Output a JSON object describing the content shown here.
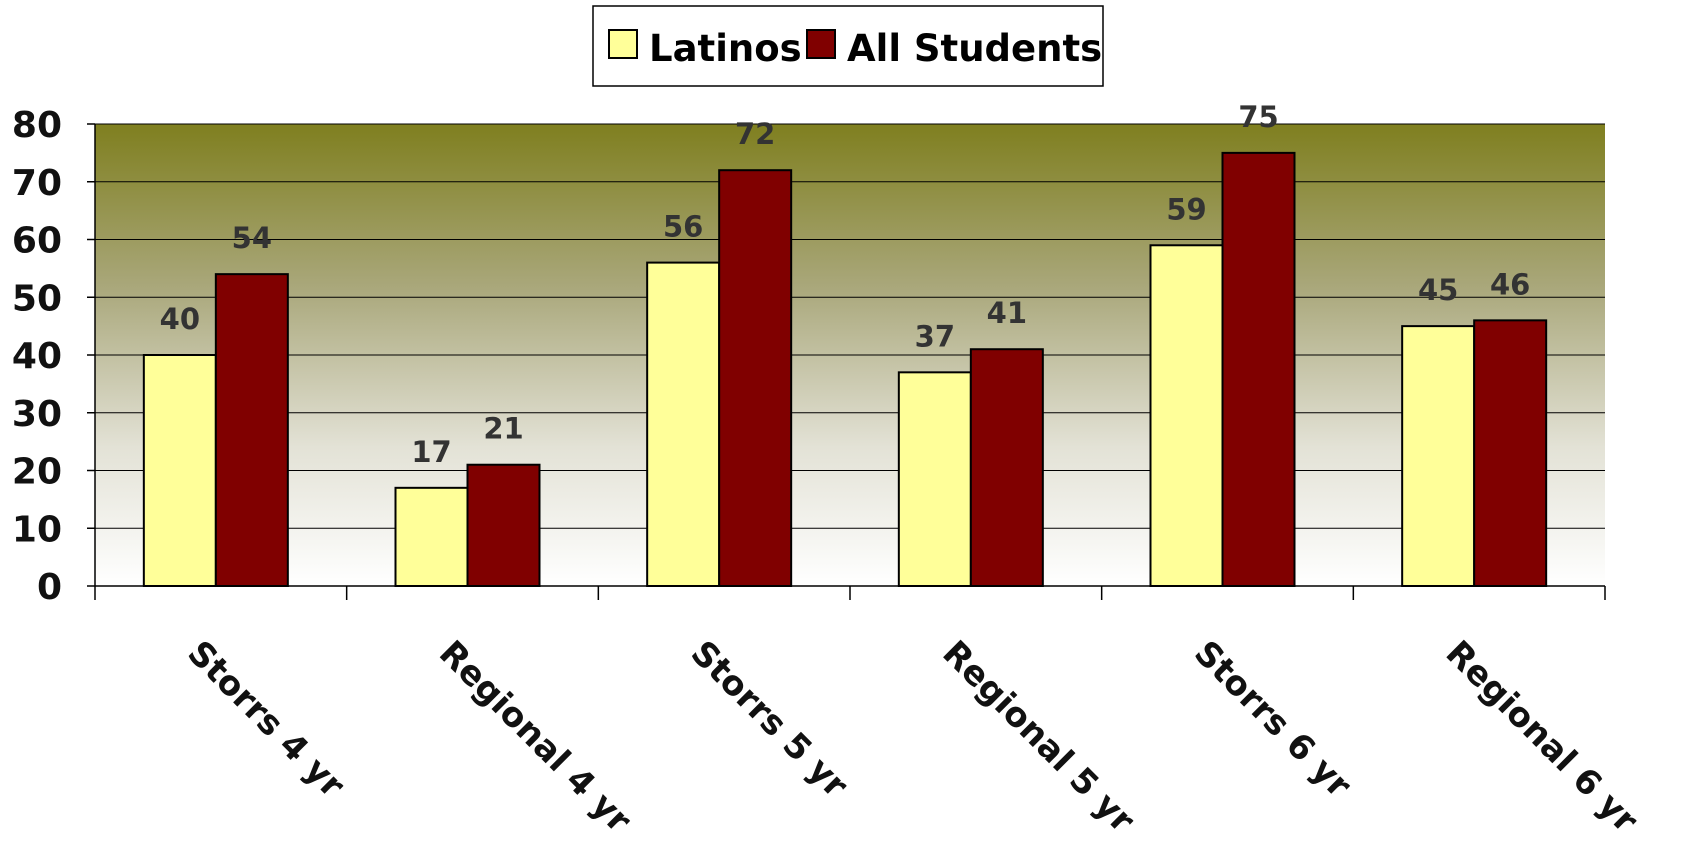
{
  "chart_data": {
    "type": "bar",
    "categories": [
      "Storrs 4 yr",
      "Regional 4 yr",
      "Storrs 5 yr",
      "Regional 5 yr",
      "Storrs 6 yr",
      "Regional 6 yr"
    ],
    "series": [
      {
        "name": "Latinos",
        "values": [
          40,
          17,
          56,
          37,
          59,
          45
        ],
        "color": "#FFFF99"
      },
      {
        "name": "All Students",
        "values": [
          54,
          21,
          72,
          41,
          75,
          46
        ],
        "color": "#800000"
      }
    ],
    "data_labels": {
      "Latinos": [
        "40",
        "17",
        "56",
        "37",
        "59",
        "45"
      ],
      "All Students": [
        "54",
        "21",
        "72",
        "41",
        "75",
        "46"
      ]
    },
    "ylim": [
      0,
      80
    ],
    "yticks": [
      "0",
      "10",
      "20",
      "30",
      "40",
      "50",
      "60",
      "70",
      "80"
    ],
    "title": "",
    "xlabel": "",
    "ylabel": "",
    "grid": true,
    "legend_position": "top-center",
    "plot_background_gradient": [
      "#7f7f1f",
      "#ffffff"
    ],
    "gridline_color": "#000000"
  }
}
